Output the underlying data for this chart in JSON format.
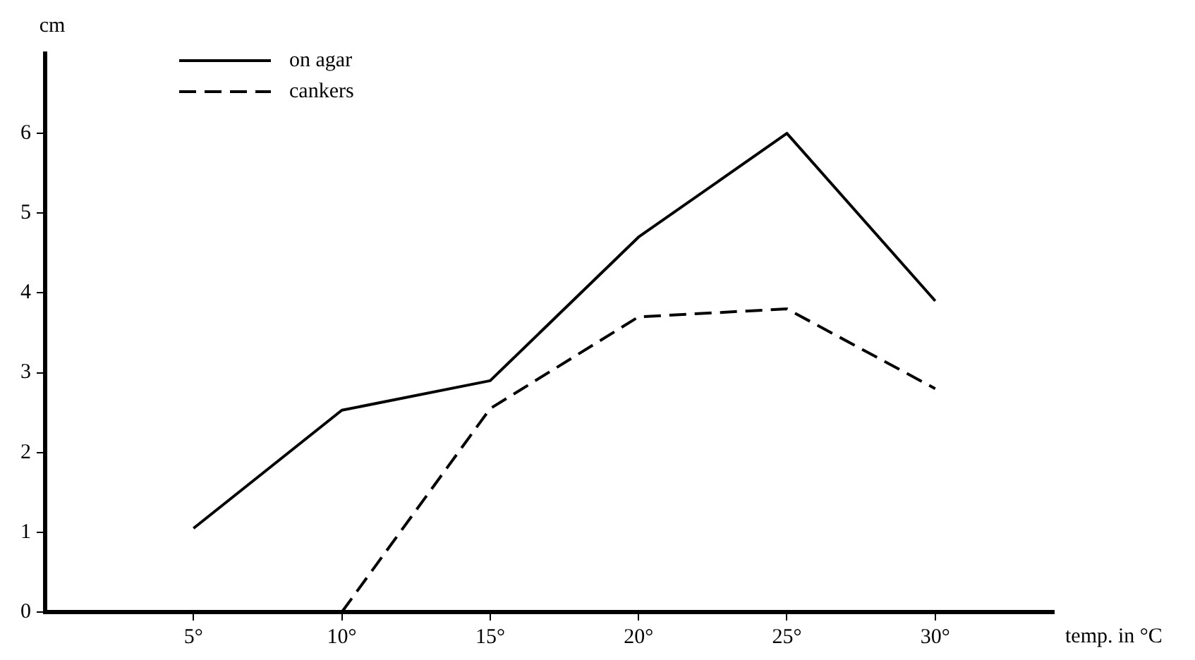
{
  "chart_data": {
    "type": "line",
    "xlabel": "temp. in °C",
    "ylabel": "cm",
    "xlim": [
      0,
      34
    ],
    "xticks": [
      {
        "value": 5,
        "label": "5°"
      },
      {
        "value": 10,
        "label": "10°"
      },
      {
        "value": 15,
        "label": "15°"
      },
      {
        "value": 20,
        "label": "20°"
      },
      {
        "value": 25,
        "label": "25°"
      },
      {
        "value": 30,
        "label": "30°"
      }
    ],
    "ylim": [
      0,
      7
    ],
    "yticks": [
      0,
      1,
      2,
      3,
      4,
      5,
      6
    ],
    "x": [
      5,
      10,
      15,
      20,
      25,
      30
    ],
    "series": [
      {
        "name": "on agar",
        "color": "#000000",
        "line_style": "solid",
        "values": [
          1.05,
          2.53,
          2.9,
          4.7,
          6.0,
          3.9
        ]
      },
      {
        "name": "cankers",
        "color": "#000000",
        "line_style": "dashed",
        "x": [
          10,
          15,
          20,
          25,
          30
        ],
        "values": [
          0,
          2.55,
          3.7,
          3.8,
          2.8
        ]
      }
    ],
    "legend": "top left",
    "marker": "none",
    "grid": false
  }
}
